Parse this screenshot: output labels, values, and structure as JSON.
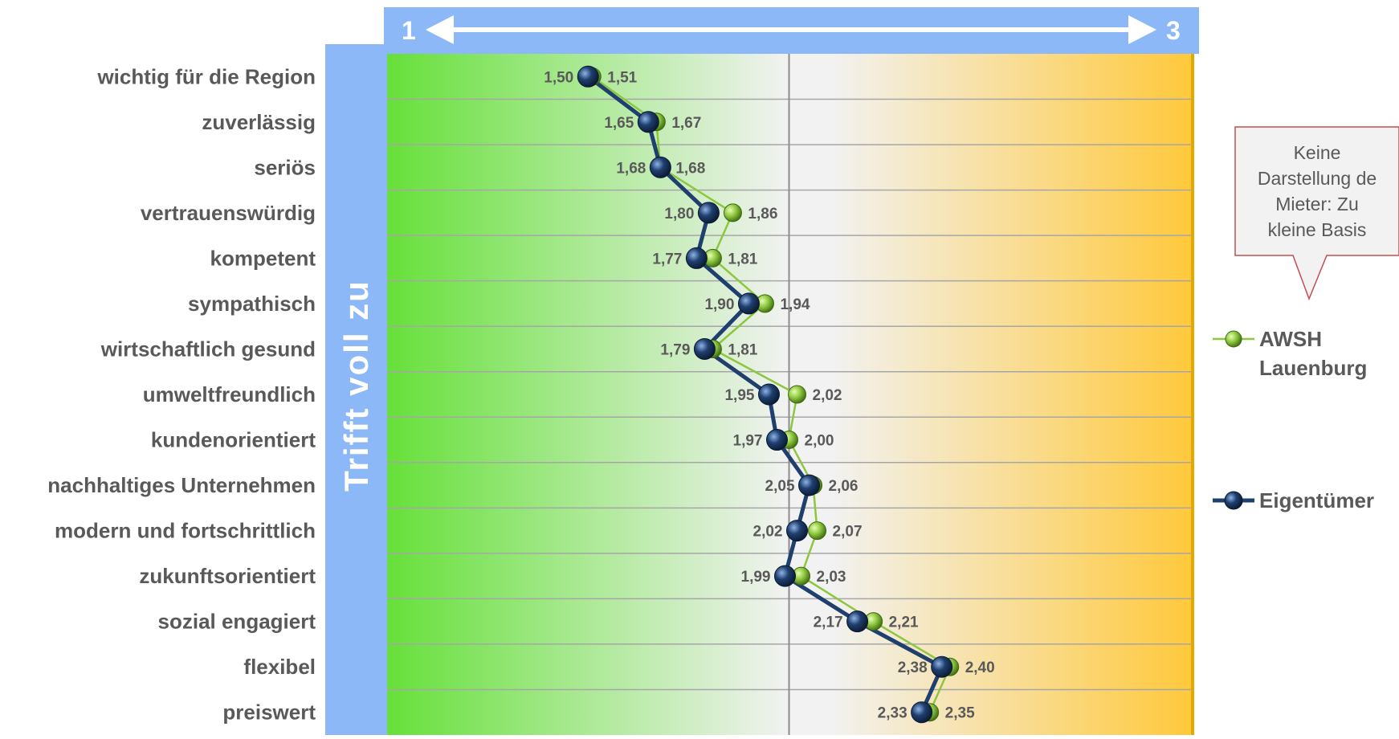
{
  "chart_data": {
    "type": "line",
    "orientation": "horizontal",
    "scale": {
      "min_label": "1",
      "max_label": "3"
    },
    "side_title": "Trifft voll zu",
    "categories": [
      "wichtig für die Region",
      "zuverlässig",
      "seriös",
      "vertrauenswürdig",
      "kompetent",
      "sympathisch",
      "wirtschaftlich gesund",
      "umweltfreundlich",
      "kundenorientiert",
      "nachhaltiges Unternehmen",
      "modern und fortschrittlich",
      "zukunftsorientiert",
      "sozial engagiert",
      "flexibel",
      "preiswert"
    ],
    "xlim": [
      1,
      3
    ],
    "series": [
      {
        "name": "AWSH Lauenburg",
        "legend_lines": [
          "AWSH",
          "Lauenburg"
        ],
        "color": "#8dc63f",
        "values": [
          1.51,
          1.67,
          1.68,
          1.86,
          1.81,
          1.94,
          1.81,
          2.02,
          2.0,
          2.06,
          2.07,
          2.03,
          2.21,
          2.4,
          2.35
        ],
        "labels": [
          "1,51",
          "1,67",
          "1,68",
          "1,86",
          "1,81",
          "1,94",
          "1,81",
          "2,02",
          "2,00",
          "2,06",
          "2,07",
          "2,03",
          "2,21",
          "2,40",
          "2,35"
        ]
      },
      {
        "name": "Eigentümer",
        "legend_lines": [
          "Eigentümer"
        ],
        "color": "#1f3f6e",
        "values": [
          1.5,
          1.65,
          1.68,
          1.8,
          1.77,
          1.9,
          1.79,
          1.95,
          1.97,
          2.05,
          2.02,
          1.99,
          2.17,
          2.38,
          2.33
        ],
        "labels": [
          "1,50",
          "1,65",
          "1,68",
          "1,80",
          "1,77",
          "1,90",
          "1,79",
          "1,95",
          "1,97",
          "2,05",
          "2,02",
          "1,99",
          "2,17",
          "2,38",
          "2,33"
        ]
      }
    ],
    "callout_lines": [
      "Keine",
      "Darstellung de",
      "Mieter: Zu",
      "kleine Basis"
    ],
    "colors": {
      "header": "#8db8f7",
      "gradient_left": "#66e03a",
      "gradient_mid": "#f2f2f2",
      "gradient_right": "#ffc93c",
      "grid": "#a6a6a6"
    }
  }
}
